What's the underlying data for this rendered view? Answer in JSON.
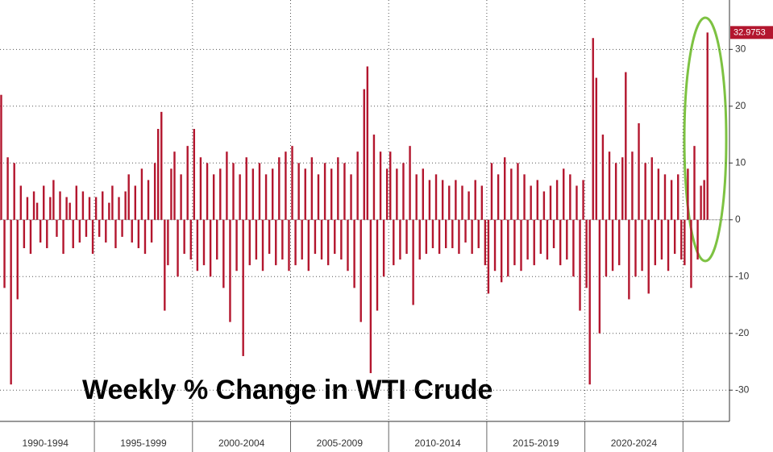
{
  "chart_data": {
    "type": "bar",
    "annotation": "Weekly % Change in WTI Crude",
    "categories": [
      "1990-1994",
      "1995-1999",
      "2000-2004",
      "2005-2009",
      "2010-2014",
      "2015-2019",
      "2020-2024",
      null
    ],
    "values": [
      [
        8,
        22,
        -12,
        11,
        -29,
        10,
        -14,
        6,
        -5,
        4,
        -6,
        5,
        3,
        -4,
        6,
        -5,
        4,
        7,
        -3,
        5,
        -6,
        4,
        3,
        -5,
        6,
        -4,
        5,
        -3,
        4,
        -6
      ],
      [
        4,
        -3,
        5,
        -4,
        3,
        6,
        -5,
        4,
        -3,
        5,
        8,
        -4,
        6,
        -5,
        9,
        -6,
        7,
        -4,
        10,
        16,
        19,
        -16,
        -8,
        9,
        12,
        -10,
        8,
        -6,
        13,
        -7
      ],
      [
        16,
        -9,
        11,
        -8,
        10,
        -10,
        8,
        -7,
        9,
        -12,
        12,
        -18,
        10,
        -9,
        8,
        -24,
        11,
        -8,
        9,
        -7,
        10,
        -9,
        8,
        -6,
        9,
        -8,
        11,
        -7,
        12,
        -9
      ],
      [
        13,
        -8,
        10,
        -7,
        9,
        -9,
        11,
        -6,
        8,
        -7,
        10,
        -8,
        9,
        -6,
        11,
        -7,
        10,
        -9,
        8,
        -12,
        12,
        -18,
        23,
        27,
        -27,
        15,
        -16,
        12,
        -10,
        9
      ],
      [
        12,
        -8,
        9,
        -7,
        10,
        -6,
        13,
        -15,
        8,
        -7,
        9,
        -6,
        7,
        -5,
        8,
        -6,
        7,
        -5,
        6,
        -5,
        7,
        -6,
        6,
        -4,
        5,
        -6,
        7,
        -5,
        6,
        -8
      ],
      [
        -13,
        10,
        -9,
        8,
        -11,
        11,
        -10,
        9,
        -8,
        10,
        -9,
        8,
        -7,
        6,
        -8,
        7,
        -6,
        5,
        -7,
        6,
        -5,
        7,
        -8,
        9,
        -7,
        8,
        -10,
        6,
        -16,
        7
      ],
      [
        -12,
        -29,
        32,
        25,
        -20,
        15,
        -10,
        12,
        -9,
        10,
        -8,
        11,
        26,
        -14,
        12,
        -10,
        17,
        -9,
        10,
        -13,
        11,
        -8,
        9,
        -7,
        8,
        -9,
        7,
        -6,
        8,
        -7
      ],
      [
        -8,
        9,
        -12,
        13,
        -7,
        6,
        7,
        32.9753
      ]
    ],
    "color": "#b3162e",
    "ylim": [
      -35.5,
      38.7
    ],
    "yticks": [
      -30,
      -20,
      -10,
      0,
      10,
      20,
      30
    ],
    "grid": true
  }
}
